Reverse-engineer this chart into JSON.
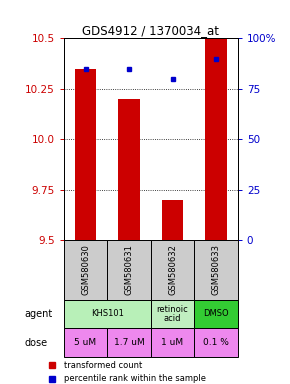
{
  "title": "GDS4912 / 1370034_at",
  "samples": [
    "GSM580630",
    "GSM580631",
    "GSM580632",
    "GSM580633"
  ],
  "bar_values": [
    10.35,
    10.2,
    9.7,
    10.5
  ],
  "percentile_values": [
    85,
    85,
    80,
    90
  ],
  "ymin": 9.5,
  "ymax": 10.5,
  "yticks": [
    9.5,
    9.75,
    10.0,
    10.25,
    10.5
  ],
  "right_yticks": [
    0,
    25,
    50,
    75,
    100
  ],
  "right_ytick_labels": [
    "0",
    "25",
    "50",
    "75",
    "100%"
  ],
  "bar_color": "#cc0000",
  "dot_color": "#0000cc",
  "agent_spans": [
    {
      "c0": 0,
      "c1": 2,
      "label": "KHS101",
      "color": "#b8f0b8"
    },
    {
      "c0": 2,
      "c1": 3,
      "label": "retinoic\nacid",
      "color": "#c0eec0"
    },
    {
      "c0": 3,
      "c1": 4,
      "label": "DMSO",
      "color": "#33cc33"
    }
  ],
  "dose_cells": [
    "5 uM",
    "1.7 uM",
    "1 uM",
    "0.1 %"
  ],
  "dose_color": "#ee88ee",
  "sample_row_color": "#cccccc",
  "bar_color_legend": "#cc0000",
  "dot_color_legend": "#0000cc",
  "left_axis_color": "#cc0000",
  "right_axis_color": "#0000cc"
}
